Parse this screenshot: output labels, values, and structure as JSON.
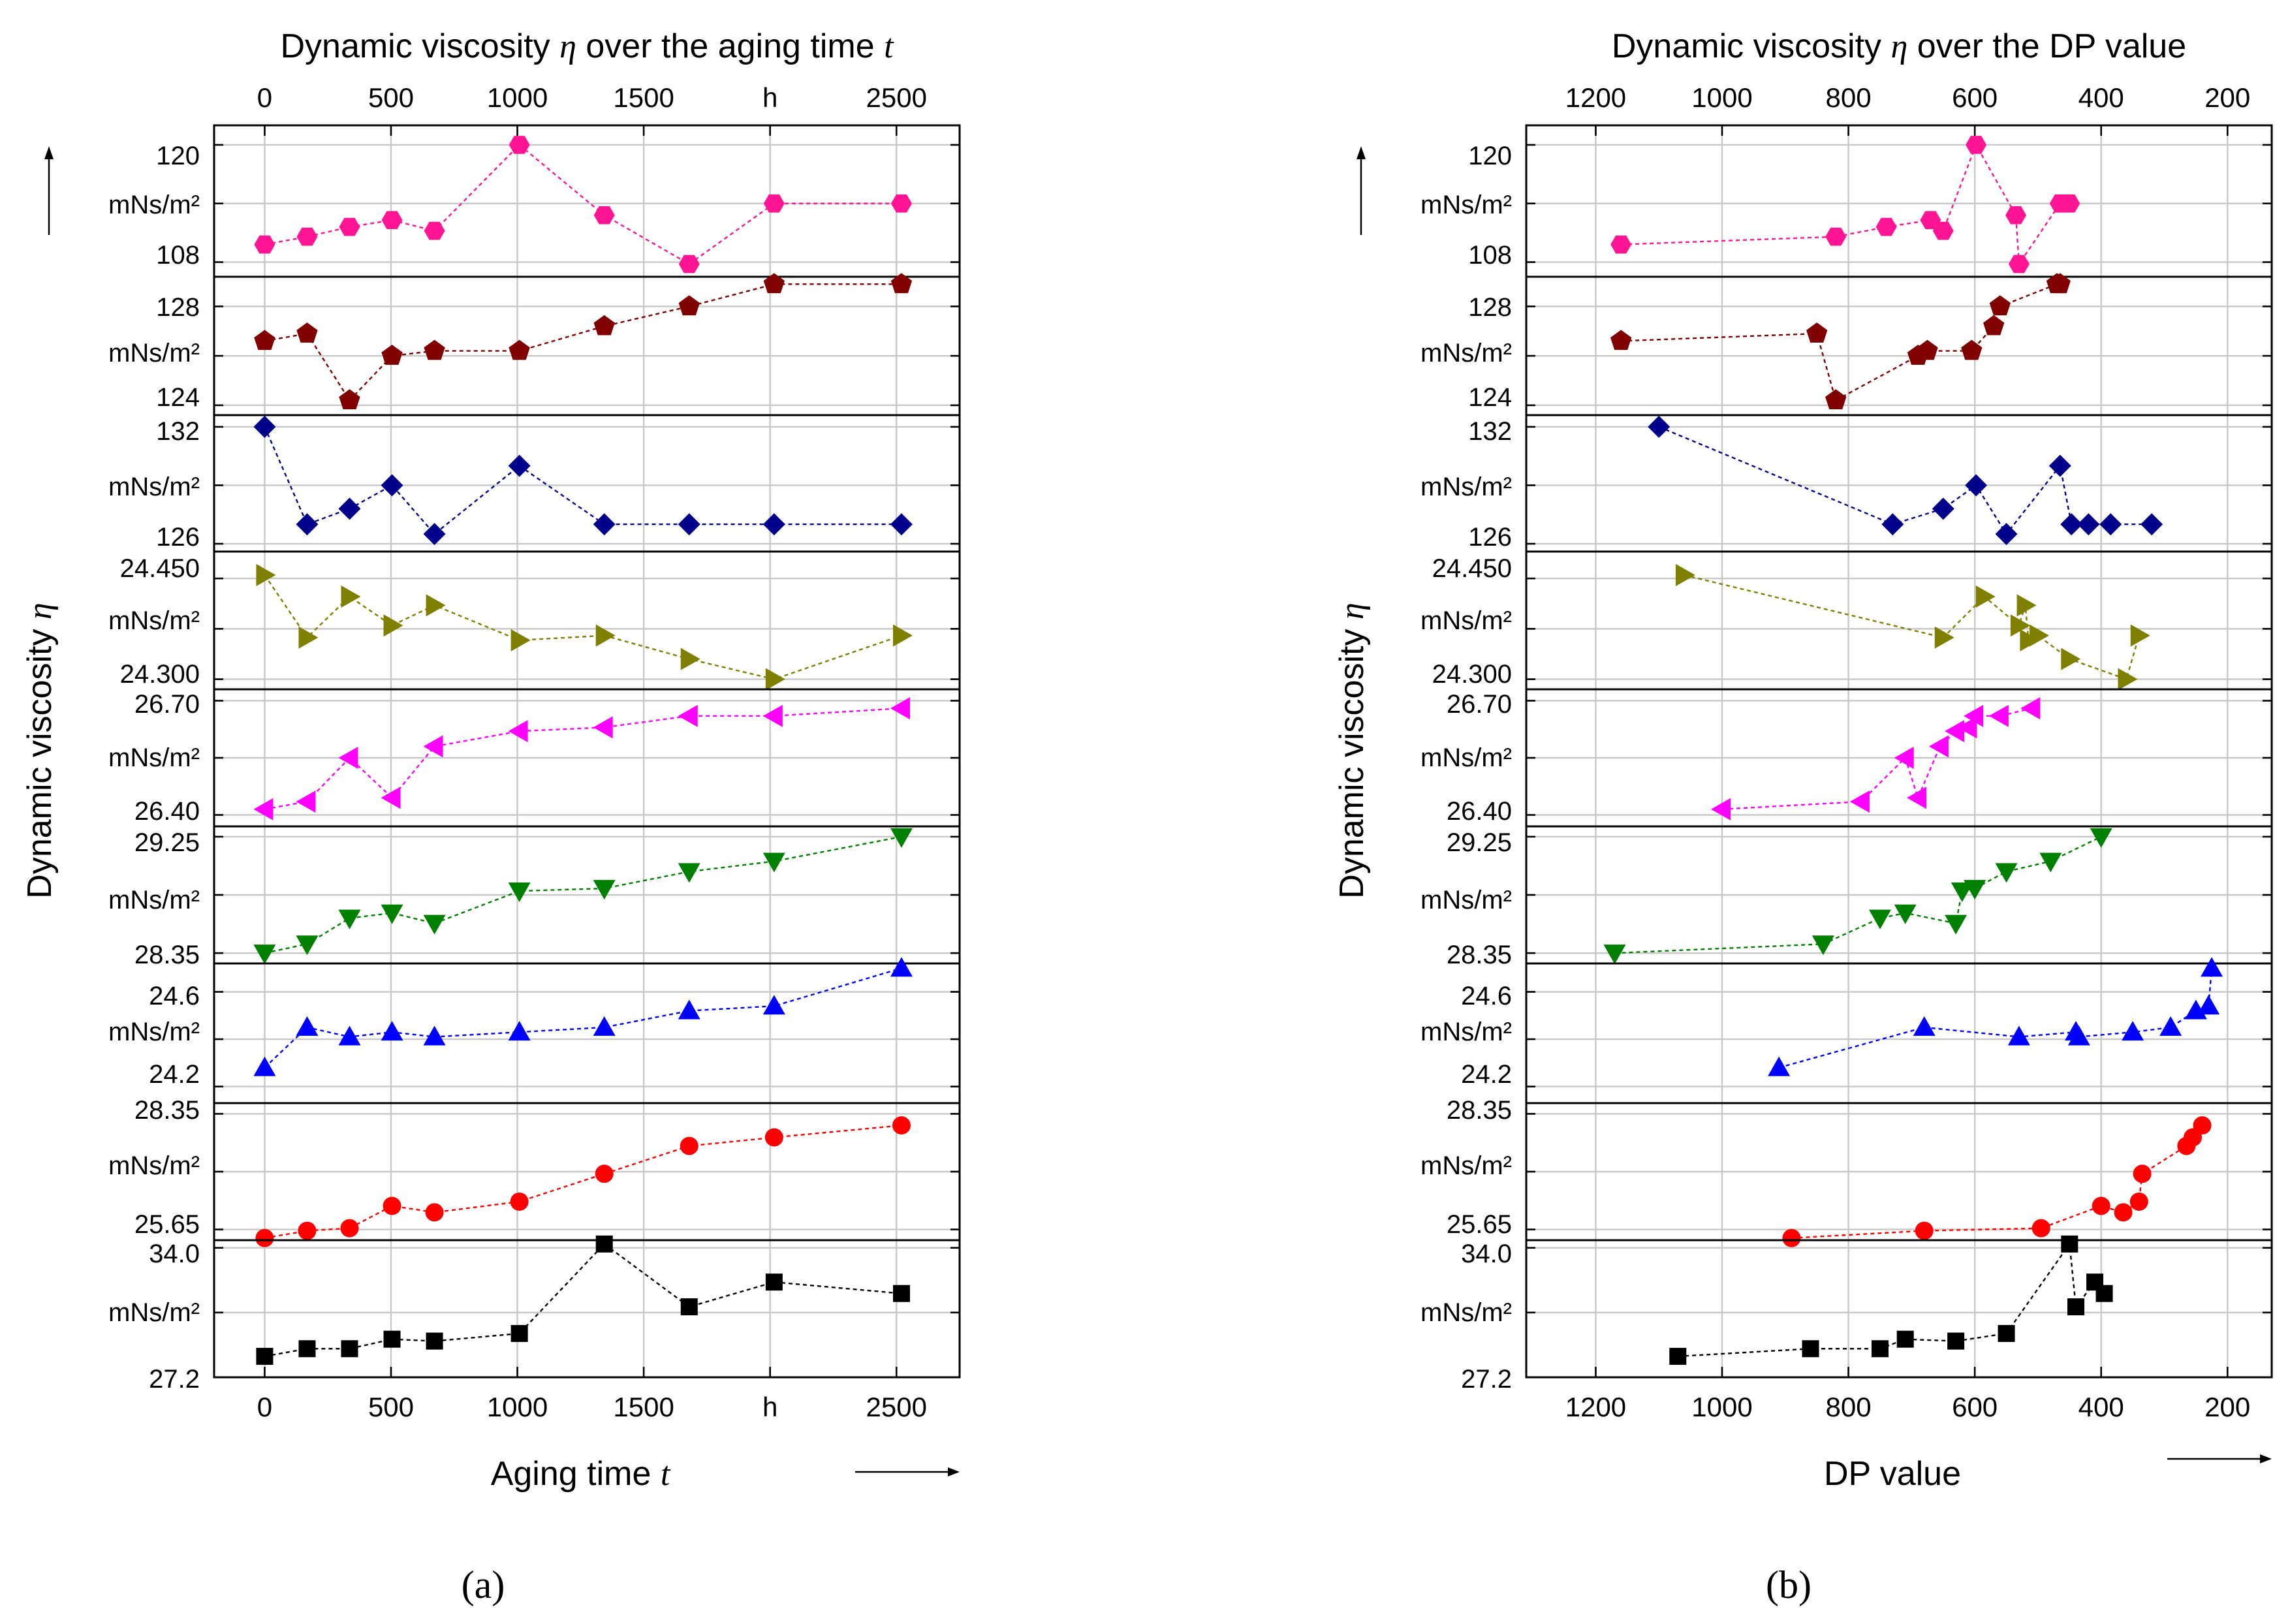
{
  "figure": {
    "label_a": "(a)",
    "label_b": "(b)"
  },
  "chart_data": [
    {
      "id": "a",
      "type": "scatter",
      "title": "Dynamic viscosity η over the aging time t",
      "title_main": "Dynamic viscosity ",
      "title_var": "η",
      "title_tail": " over the aging time ",
      "title_var2": "t",
      "xlabel_main": "Aging time ",
      "xlabel_var": "t",
      "ylabel_main": "Dynamic viscosity ",
      "ylabel_var": "η",
      "xlim": [
        -200,
        2750
      ],
      "xticks": [
        0,
        500,
        1000,
        1500,
        2000,
        2500
      ],
      "xtick_labels": [
        "0",
        "500",
        "1000",
        "1500",
        "h",
        "2500"
      ],
      "grid": true,
      "x_arrow": true,
      "y_arrow": true
    },
    {
      "id": "b",
      "type": "scatter",
      "title": "Dynamic viscosity η over the DP value",
      "title_main": "Dynamic viscosity ",
      "title_var": "η",
      "title_tail": " over the DP value",
      "title_var2": "",
      "xlabel_main": "DP value",
      "xlabel_var": "",
      "ylabel_main": "Dynamic viscosity ",
      "ylabel_var": "η",
      "xlim": [
        1310,
        130
      ],
      "xticks": [
        1200,
        1000,
        800,
        600,
        400,
        200
      ],
      "xtick_labels": [
        "1200",
        "1000",
        "800",
        "600",
        "400",
        "200"
      ],
      "grid": true,
      "x_arrow": true,
      "y_arrow": true
    }
  ],
  "panels": [
    {
      "name": "hexagon-panel",
      "marker": "hexagon",
      "color": "#ff1493",
      "ylim": [
        106.5,
        122
      ],
      "yticks": [
        108,
        114,
        120
      ],
      "ytick_labels": [
        "108",
        "mNs/m²",
        "120"
      ],
      "time": [
        0,
        168,
        336,
        504,
        672,
        1008,
        1344,
        1680,
        2016,
        2520
      ],
      "dp": [
        1160,
        820,
        740,
        670,
        650,
        598,
        535,
        530,
        465,
        450
      ],
      "values": [
        109.8,
        110.6,
        111.6,
        112.3,
        111.2,
        120.0,
        112.8,
        107.8,
        114.0,
        114.0
      ]
    },
    {
      "name": "pentagon-panel",
      "marker": "pentagon",
      "color": "#800000",
      "ylim": [
        123.6,
        129.2
      ],
      "yticks": [
        124,
        126,
        128
      ],
      "ytick_labels": [
        "124",
        "mNs/m²",
        "128"
      ],
      "time": [
        0,
        168,
        336,
        504,
        672,
        1008,
        1344,
        1680,
        2016,
        2520
      ],
      "dp": [
        1160,
        850,
        820,
        690,
        675,
        605,
        570,
        560,
        470,
        465
      ],
      "values": [
        126.6,
        126.9,
        124.2,
        126.0,
        126.2,
        126.2,
        127.2,
        128.0,
        128.9,
        128.9
      ]
    },
    {
      "name": "diamond-panel",
      "marker": "diamond",
      "color": "#00008b",
      "ylim": [
        125.6,
        132.6
      ],
      "yticks": [
        126,
        129,
        132
      ],
      "ytick_labels": [
        "126",
        "mNs/m²",
        "132"
      ],
      "time": [
        0,
        168,
        336,
        504,
        672,
        1008,
        1344,
        1680,
        2016,
        2520
      ],
      "dp": [
        1100,
        730,
        650,
        598,
        550,
        465,
        447,
        420,
        385,
        320
      ],
      "values": [
        132.0,
        127.0,
        127.8,
        129.0,
        126.5,
        130.0,
        127.0,
        127.0,
        127.0,
        127.0
      ]
    },
    {
      "name": "down-left-triangle-panel",
      "marker": "triangle-right",
      "color": "#808000",
      "ylim": [
        24.285,
        24.49
      ],
      "yticks": [
        24.3,
        24.375,
        24.45
      ],
      "ytick_labels": [
        "24.300",
        "mNs/m²",
        "24.450"
      ],
      "time": [
        0,
        168,
        336,
        504,
        672,
        1008,
        1344,
        1680,
        2016,
        2520
      ],
      "dp": [
        1060,
        650,
        585,
        530,
        520,
        515,
        500,
        450,
        360,
        340
      ],
      "values": [
        24.455,
        24.362,
        24.423,
        24.38,
        24.41,
        24.358,
        24.365,
        24.33,
        24.3,
        24.365
      ]
    },
    {
      "name": "left-triangle-panel",
      "marker": "triangle-left",
      "color": "#ff00ff",
      "ylim": [
        26.37,
        26.73
      ],
      "yticks": [
        26.4,
        26.55,
        26.7
      ],
      "ytick_labels": [
        "26.40",
        "mNs/m²",
        "26.70"
      ],
      "time": [
        0,
        168,
        336,
        504,
        672,
        1008,
        1344,
        1680,
        2016,
        2520
      ],
      "dp": [
        1000,
        780,
        710,
        690,
        655,
        630,
        610,
        600,
        560,
        510
      ],
      "values": [
        26.415,
        26.435,
        26.55,
        26.445,
        26.58,
        26.62,
        26.63,
        26.66,
        26.66,
        26.68
      ]
    },
    {
      "name": "down-triangle-panel",
      "marker": "triangle-down",
      "color": "#008000",
      "ylim": [
        28.27,
        29.33
      ],
      "yticks": [
        28.35,
        28.8,
        29.25
      ],
      "ytick_labels": [
        "28.35",
        "mNs/m²",
        "29.25"
      ],
      "time": [
        0,
        168,
        336,
        504,
        672,
        1008,
        1344,
        1680,
        2016,
        2520
      ],
      "dp": [
        1170,
        840,
        750,
        710,
        630,
        620,
        600,
        550,
        480,
        400
      ],
      "values": [
        28.35,
        28.42,
        28.62,
        28.66,
        28.58,
        28.83,
        28.85,
        28.98,
        29.06,
        29.25
      ]
    },
    {
      "name": "up-triangle-panel",
      "marker": "triangle-up",
      "color": "#0000ff",
      "ylim": [
        24.13,
        24.72
      ],
      "yticks": [
        24.2,
        24.4,
        24.6
      ],
      "ytick_labels": [
        "24.2",
        "mNs/m²",
        "24.6"
      ],
      "time": [
        0,
        168,
        336,
        504,
        672,
        1008,
        1344,
        1680,
        2016,
        2520
      ],
      "dp": [
        910,
        680,
        530,
        440,
        435,
        350,
        290,
        250,
        230,
        225
      ],
      "values": [
        24.28,
        24.45,
        24.41,
        24.43,
        24.41,
        24.43,
        24.45,
        24.52,
        24.54,
        24.7
      ]
    },
    {
      "name": "circle-panel",
      "marker": "circle",
      "color": "#ff0000",
      "ylim": [
        25.4,
        28.6
      ],
      "yticks": [
        25.65,
        27.0,
        28.35
      ],
      "ytick_labels": [
        "25.65",
        "mNs/m²",
        "28.35"
      ],
      "time": [
        0,
        168,
        336,
        504,
        672,
        1008,
        1344,
        1680,
        2016,
        2520
      ],
      "dp": [
        890,
        680,
        495,
        400,
        365,
        340,
        335,
        265,
        255,
        240
      ],
      "values": [
        25.45,
        25.62,
        25.68,
        26.2,
        26.05,
        26.3,
        26.95,
        27.6,
        27.8,
        28.08
      ]
    },
    {
      "name": "square-panel",
      "marker": "square",
      "color": "#000000",
      "ylim": [
        27.2,
        34.4
      ],
      "yticks": [
        27.2,
        30.6,
        34.0
      ],
      "ytick_labels": [
        "27.2",
        "mNs/m²",
        "34.0"
      ],
      "time": [
        0,
        168,
        336,
        504,
        672,
        1008,
        1344,
        1680,
        2016,
        2520
      ],
      "dp": [
        1070,
        860,
        750,
        710,
        630,
        550,
        450,
        440,
        410,
        395
      ],
      "values": [
        28.3,
        28.7,
        28.7,
        29.2,
        29.1,
        29.5,
        34.2,
        30.9,
        32.2,
        31.6
      ]
    }
  ]
}
